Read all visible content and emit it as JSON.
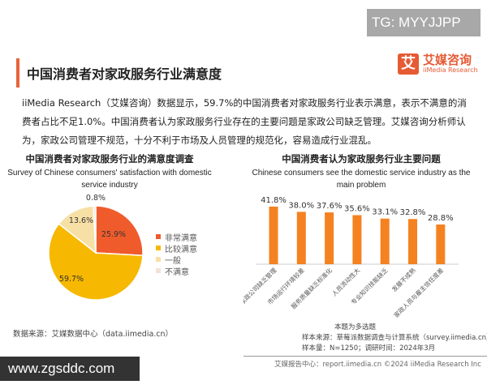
{
  "watermark_top": "TG: MYYJJPP",
  "header": {
    "title": "中国消费者对家政服务行业满意度",
    "logo_mark": "艾",
    "logo_cn": "艾媒咨询",
    "logo_en": "iiMedia Research"
  },
  "paragraph": "iiMedia Research（艾媒咨询）数据显示，59.7%的中国消费者对家政服务行业表示满意，表示不满意的消费者占比不足1.0%。中国消费者认为家政服务行业存在的主要问题是家政公司缺乏管理。艾媒咨询分析师认为，家政公司管理不规范，十分不利于市场及人员管理的规范化，容易造成行业混乱。",
  "chart_data": [
    {
      "type": "pie",
      "title": "中国消费者对家政服务行业的满意度调查",
      "subtitle": "Survey of Chinese consumers' satisfaction with domestic service industry",
      "slices": [
        {
          "label": "非常满意",
          "value": 25.9,
          "display": "25.9%",
          "color": "#f05b2c"
        },
        {
          "label": "比较满意",
          "value": 59.7,
          "display": "59.7%",
          "color": "#f6b800"
        },
        {
          "label": "一般",
          "value": 13.6,
          "display": "13.6%",
          "color": "#f7e0a6"
        },
        {
          "label": "不满意",
          "value": 0.8,
          "display": "0.8%",
          "color": "#f2e2d6"
        }
      ],
      "legend_position": "right",
      "source": "数据来源：艾媒数据中心（data.iimedia.cn）"
    },
    {
      "type": "bar",
      "title": "中国消费者认为家政服务行业主要问题",
      "subtitle": "Chinese consumers see the domestic service industry as the main problem",
      "categories": [
        "家政公司缺乏管理",
        "市场运行环境较差",
        "服务质量缺乏标准化",
        "人员流动性大",
        "专业知识技能缺乏",
        "发展不成熟",
        "家政人员与雇主信任度差"
      ],
      "values": [
        41.8,
        38.0,
        37.6,
        35.6,
        33.1,
        32.8,
        28.8
      ],
      "labels": [
        "41.8%",
        "38.0%",
        "37.6%",
        "35.6%",
        "33.1%",
        "32.8%",
        "28.8%"
      ],
      "color": "#f58220",
      "notes": [
        "本题为多选题",
        "样本来源：草莓派数据调查与计算系统（survey.iimedia.cn）",
        "样本量：N=1250；调研时间：2024年3月"
      ]
    }
  ],
  "footer": "艾媒报告中心：report.iimedia.cn   ©2024  iiMedia Research  Inc",
  "watermark_bottom": "www.zgsddc.com"
}
